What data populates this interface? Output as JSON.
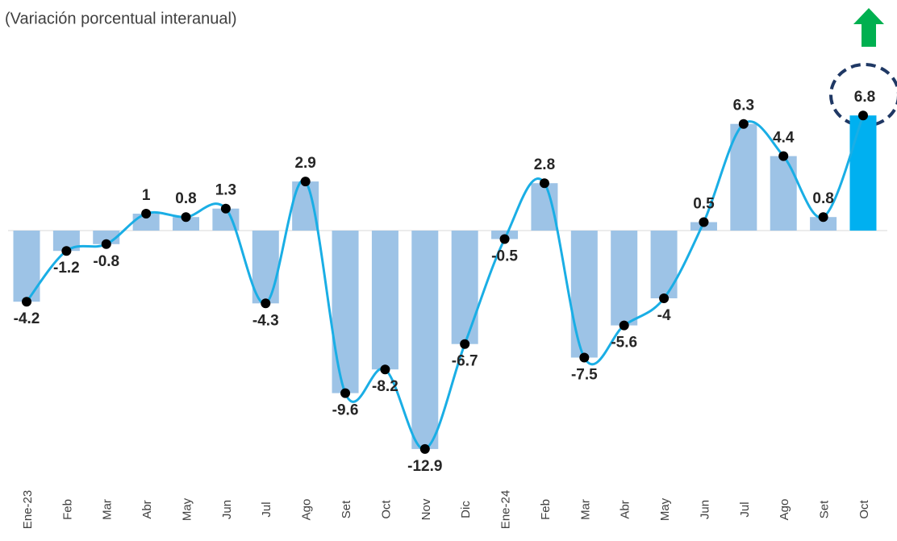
{
  "chart_data": {
    "type": "bar-line",
    "subtitle": "(Variación porcentual interanual)",
    "categories": [
      "Ene-23",
      "Feb",
      "Mar",
      "Abr",
      "May",
      "Jun",
      "Jul",
      "Ago",
      "Set",
      "Oct",
      "Nov",
      "Dic",
      "Ene-24",
      "Feb",
      "Mar",
      "Abr",
      "May",
      "Jun",
      "Jul",
      "Ago",
      "Set",
      "Oct"
    ],
    "values": [
      -4.2,
      -1.2,
      -0.8,
      1.0,
      0.8,
      1.3,
      -4.3,
      2.9,
      -9.6,
      -8.2,
      -12.9,
      -6.7,
      -0.5,
      2.8,
      -7.5,
      -5.6,
      -4.0,
      0.5,
      6.3,
      4.4,
      0.8,
      6.8
    ],
    "colors": [
      "#9dc3e6",
      "#9dc3e6",
      "#9dc3e6",
      "#9dc3e6",
      "#9dc3e6",
      "#9dc3e6",
      "#9dc3e6",
      "#9dc3e6",
      "#9dc3e6",
      "#9dc3e6",
      "#9dc3e6",
      "#9dc3e6",
      "#9dc3e6",
      "#9dc3e6",
      "#9dc3e6",
      "#9dc3e6",
      "#9dc3e6",
      "#9dc3e6",
      "#9dc3e6",
      "#9dc3e6",
      "#9dc3e6",
      "#00b0f0"
    ],
    "line_color": "#1aaee5",
    "ylim": [
      -14,
      11
    ]
  }
}
